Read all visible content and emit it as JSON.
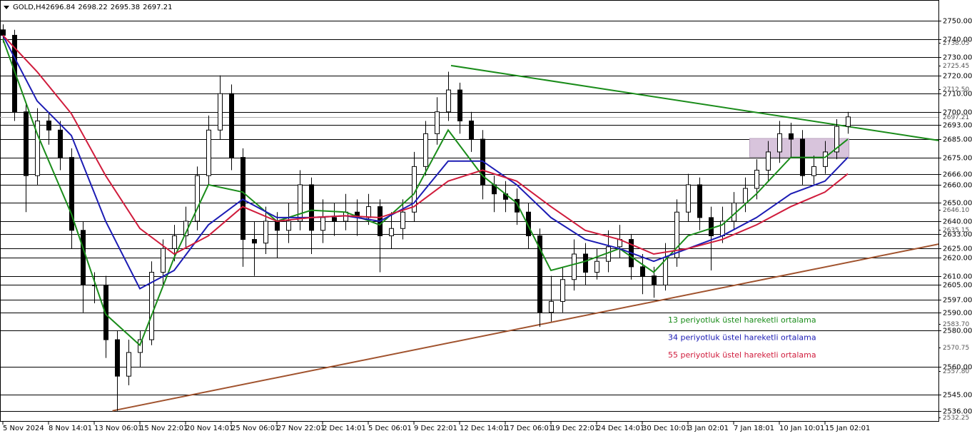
{
  "chart_data": {
    "type": "candlestick",
    "title": "GOLD,H4",
    "ohlc": [
      2696.84,
      2698.22,
      2695.38,
      2697.21
    ],
    "categories": [
      "5 Nov 2024",
      null,
      null,
      null,
      "8 Nov 14:01",
      null,
      null,
      null,
      "13 Nov 06:01",
      null,
      null,
      null,
      "15 Nov 22:01",
      null,
      null,
      null,
      "20 Nov 14:01",
      null,
      null,
      null,
      "25 Nov 06:01",
      null,
      null,
      null,
      "27 Nov 22:01",
      null,
      null,
      null,
      "2 Dec 14:01",
      null,
      null,
      null,
      "5 Dec 06:01",
      null,
      null,
      null,
      "9 Dec 22:01",
      null,
      null,
      null,
      "12 Dec 14:01",
      null,
      null,
      null,
      "17 Dec 06:01",
      null,
      null,
      null,
      "19 Dec 22:01",
      null,
      null,
      null,
      "24 Dec 14:01",
      null,
      null,
      null,
      "30 Dec 10:01",
      null,
      null,
      null,
      "3 Jan 02:01",
      null,
      null,
      null,
      "7 Jan 18:01",
      null,
      null,
      null,
      "10 Jan 10:01",
      null,
      null,
      null,
      "15 Jan 02:01",
      null,
      null
    ],
    "open": [
      2745,
      2742,
      2700,
      2665,
      2695,
      2690,
      2675,
      2635,
      2605,
      2605,
      2575,
      2555,
      2568,
      2575,
      2612,
      2625,
      2632,
      2640,
      2665,
      2690,
      2710,
      2675,
      2630,
      2628,
      2640,
      2635,
      2640,
      2660,
      2635,
      2642,
      2640,
      2645,
      2642,
      2648,
      2632,
      2636,
      2645,
      2670,
      2688,
      2700,
      2712,
      2695,
      2685,
      2660,
      2655,
      2652,
      2645,
      2632,
      2590,
      2596,
      2608,
      2622,
      2612,
      2618,
      2626,
      2630,
      2615,
      2610,
      2605,
      2620,
      2645,
      2660,
      2642,
      2632,
      2640,
      2650,
      2658,
      2668,
      2678,
      2688,
      2685,
      2665,
      2670,
      2678,
      2692
    ],
    "high": [
      2748,
      2745,
      2705,
      2702,
      2700,
      2695,
      2680,
      2640,
      2612,
      2610,
      2580,
      2575,
      2580,
      2618,
      2630,
      2638,
      2648,
      2670,
      2698,
      2720,
      2715,
      2680,
      2640,
      2648,
      2645,
      2650,
      2668,
      2664,
      2652,
      2650,
      2655,
      2652,
      2655,
      2652,
      2645,
      2652,
      2678,
      2695,
      2708,
      2722,
      2716,
      2700,
      2690,
      2665,
      2662,
      2658,
      2650,
      2636,
      2610,
      2615,
      2630,
      2628,
      2625,
      2635,
      2638,
      2633,
      2622,
      2615,
      2628,
      2652,
      2666,
      2664,
      2648,
      2648,
      2656,
      2664,
      2674,
      2684,
      2695,
      2694,
      2690,
      2676,
      2684,
      2696,
      2700
    ],
    "low": [
      2738,
      2695,
      2645,
      2660,
      2682,
      2668,
      2625,
      2590,
      2595,
      2565,
      2536,
      2550,
      2560,
      2572,
      2605,
      2618,
      2625,
      2635,
      2660,
      2685,
      2668,
      2615,
      2610,
      2622,
      2620,
      2628,
      2635,
      2622,
      2628,
      2632,
      2635,
      2632,
      2638,
      2612,
      2625,
      2630,
      2640,
      2665,
      2682,
      2695,
      2688,
      2678,
      2652,
      2645,
      2645,
      2638,
      2625,
      2582,
      2585,
      2590,
      2602,
      2605,
      2608,
      2612,
      2620,
      2608,
      2600,
      2598,
      2602,
      2615,
      2640,
      2635,
      2613,
      2628,
      2635,
      2645,
      2652,
      2662,
      2672,
      2675,
      2660,
      2660,
      2666,
      2674,
      2688
    ],
    "close": [
      2742,
      2700,
      2665,
      2695,
      2690,
      2675,
      2635,
      2605,
      2605,
      2575,
      2555,
      2568,
      2575,
      2612,
      2625,
      2632,
      2640,
      2665,
      2690,
      2710,
      2675,
      2630,
      2628,
      2640,
      2635,
      2640,
      2660,
      2635,
      2642,
      2640,
      2645,
      2642,
      2648,
      2632,
      2636,
      2645,
      2670,
      2688,
      2700,
      2712,
      2695,
      2685,
      2660,
      2655,
      2652,
      2645,
      2632,
      2590,
      2596,
      2608,
      2622,
      2612,
      2618,
      2626,
      2630,
      2615,
      2610,
      2605,
      2620,
      2645,
      2660,
      2642,
      2632,
      2640,
      2650,
      2658,
      2668,
      2678,
      2688,
      2685,
      2665,
      2670,
      2678,
      2692,
      2697.21
    ],
    "series": [
      {
        "name": "13 periyotluk üstel hareketli ortalama",
        "color": "#1a8c1a",
        "x": [
          0,
          3,
          6,
          9,
          12,
          15,
          18,
          21,
          24,
          27,
          30,
          33,
          36,
          39,
          42,
          45,
          48,
          51,
          54,
          57,
          60,
          63,
          66,
          69,
          72,
          74
        ],
        "values": [
          2740,
          2688,
          2644,
          2589,
          2572,
          2620,
          2660,
          2656,
          2640,
          2646,
          2645,
          2638,
          2655,
          2690,
          2665,
          2650,
          2613,
          2618,
          2625,
          2612,
          2632,
          2638,
          2655,
          2675,
          2675,
          2685
        ]
      },
      {
        "name": "34 periyotluk üstel hareketli ortalama",
        "color": "#1c1cb4",
        "x": [
          0,
          3,
          6,
          9,
          12,
          15,
          18,
          21,
          24,
          27,
          30,
          33,
          36,
          39,
          42,
          45,
          48,
          51,
          54,
          57,
          60,
          63,
          66,
          69,
          72,
          74
        ],
        "values": [
          2742,
          2706,
          2687,
          2640,
          2603,
          2613,
          2638,
          2652,
          2642,
          2642,
          2643,
          2640,
          2650,
          2673,
          2673,
          2660,
          2642,
          2630,
          2625,
          2618,
          2625,
          2632,
          2642,
          2655,
          2662,
          2675
        ]
      },
      {
        "name": "55 periyotluk üstel hareketli ortalama",
        "color": "#d01c3c",
        "x": [
          0,
          3,
          6,
          9,
          12,
          15,
          18,
          21,
          24,
          27,
          30,
          33,
          36,
          39,
          42,
          45,
          48,
          51,
          54,
          57,
          60,
          63,
          66,
          69,
          72,
          74
        ],
        "values": [
          2742,
          2722,
          2699,
          2665,
          2636,
          2622,
          2632,
          2648,
          2640,
          2642,
          2643,
          2642,
          2648,
          2662,
          2668,
          2662,
          2648,
          2635,
          2630,
          2622,
          2625,
          2630,
          2638,
          2648,
          2656,
          2666
        ]
      }
    ],
    "trendlines": [
      {
        "color": "#1a8c1a",
        "x": [
          39.25,
          82
        ],
        "values": [
          2725.4,
          2684.25
        ]
      },
      {
        "color": "#a0522d",
        "x": [
          9.6,
          82
        ],
        "values": [
          2536,
          2627.5
        ]
      }
    ],
    "zone": {
      "color": "#d8c4dc",
      "x": [
        65.4,
        74.1
      ],
      "values": [
        2685.4,
        2675.2
      ]
    },
    "ylim": [
      2530.4,
      2761.35
    ],
    "level_lines": [
      {
        "value": 2750,
        "label": "2750.00"
      },
      {
        "value": 2740,
        "label": "2740.00"
      },
      {
        "value": 2730,
        "label": "2730.00"
      },
      {
        "value": 2720,
        "label": "2720.00"
      },
      {
        "value": 2710,
        "label": "2710.00"
      },
      {
        "value": 2700,
        "label": "2700.00"
      },
      {
        "value": 2693,
        "label": "2693.00"
      },
      {
        "value": 2685,
        "label": "2685.00"
      },
      {
        "value": 2675,
        "label": "2675.00"
      },
      {
        "value": 2666,
        "label": "2666.00"
      },
      {
        "value": 2660,
        "label": "2660.00"
      },
      {
        "value": 2650,
        "label": "2650.00"
      },
      {
        "value": 2640,
        "label": "2640.00"
      },
      {
        "value": 2633,
        "label": "2633.00"
      },
      {
        "value": 2625,
        "label": "2625.00"
      },
      {
        "value": 2620,
        "label": "2620.00"
      },
      {
        "value": 2610,
        "label": "2610.00"
      },
      {
        "value": 2605,
        "label": "2605.00"
      },
      {
        "value": 2597,
        "label": "2597.00"
      },
      {
        "value": 2590,
        "label": "2590.00"
      },
      {
        "value": 2580,
        "label": "2580.00"
      },
      {
        "value": 2560,
        "label": "2560.00"
      },
      {
        "value": 2545,
        "label": "2545.00"
      },
      {
        "value": 2536,
        "label": "2536.00"
      }
    ],
    "yticks": [
      {
        "value": 2738.05,
        "label": "2738.05"
      },
      {
        "value": 2725.45,
        "label": "2725.45"
      },
      {
        "value": 2712.5,
        "label": "2712.50"
      },
      {
        "value": 2646.1,
        "label": "2646.10"
      },
      {
        "value": 2635.15,
        "label": "2635.15"
      },
      {
        "value": 2583.7,
        "label": "2583.70"
      },
      {
        "value": 2570.75,
        "label": "2570.75"
      },
      {
        "value": 2557.8,
        "label": "2557.80"
      },
      {
        "value": 2532.25,
        "label": "2532.25"
      }
    ]
  }
}
